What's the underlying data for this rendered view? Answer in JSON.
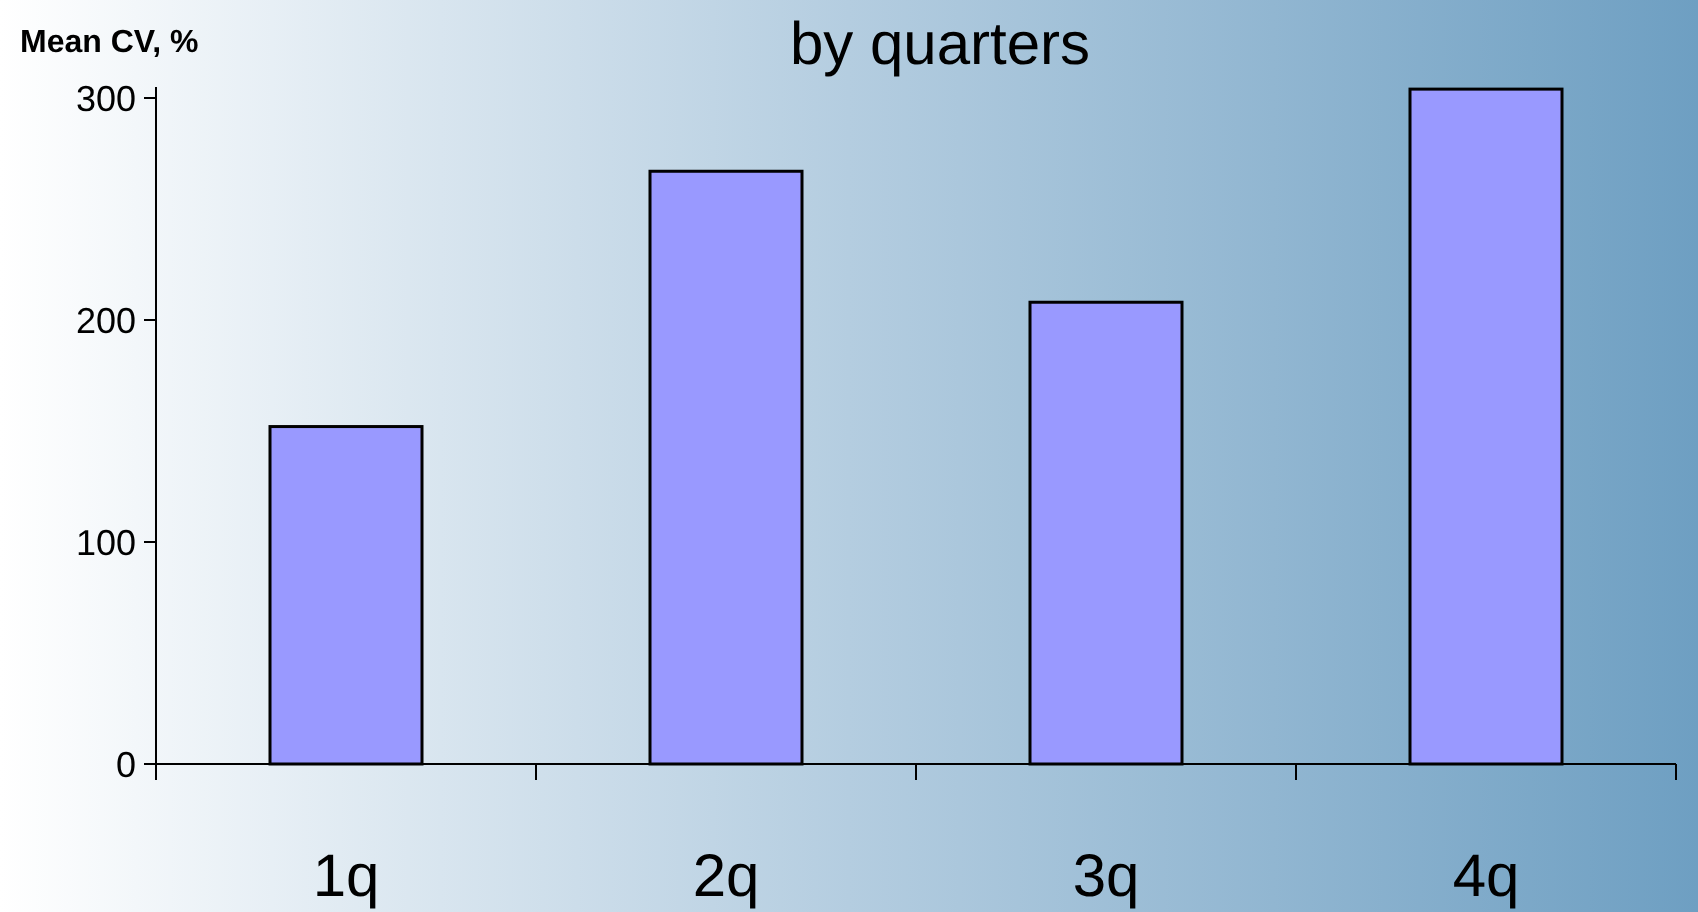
{
  "chart_data": {
    "type": "bar",
    "title": "by quarters",
    "ylabel": "Mean CV, %",
    "categories": [
      "1q",
      "2q",
      "3q",
      "4q"
    ],
    "values": [
      152,
      267,
      208,
      304
    ],
    "color": "#9999ff",
    "ylim": [
      0,
      305
    ],
    "yticks": [
      0,
      100,
      200,
      300
    ],
    "grid": false
  }
}
